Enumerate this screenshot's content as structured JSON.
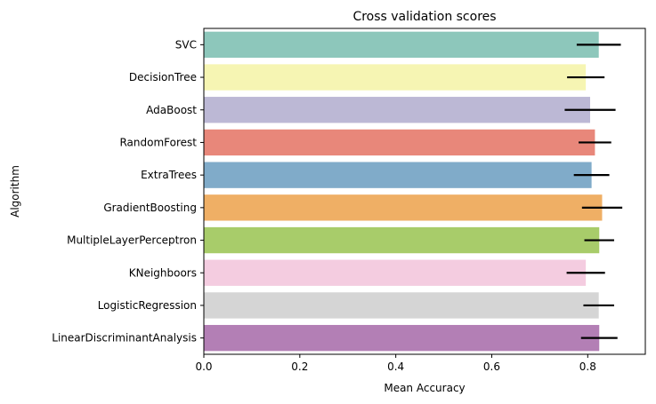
{
  "chart_data": {
    "type": "bar",
    "orientation": "horizontal",
    "title": "Cross validation scores",
    "xlabel": "Mean Accuracy",
    "ylabel": "Algorithm",
    "xlim": [
      0,
      0.92
    ],
    "xticks": [
      0.0,
      0.2,
      0.4,
      0.6,
      0.8
    ],
    "xtick_labels": [
      "0.0",
      "0.2",
      "0.4",
      "0.6",
      "0.8"
    ],
    "grid": false,
    "legend": "none",
    "categories": [
      "SVC",
      "DecisionTree",
      "AdaBoost",
      "RandomForest",
      "ExtraTrees",
      "GradientBoosting",
      "MultipleLayerPerceptron",
      "KNeighboors",
      "LogisticRegression",
      "LinearDiscriminantAnalysis"
    ],
    "values": [
      0.823,
      0.796,
      0.805,
      0.815,
      0.808,
      0.83,
      0.824,
      0.796,
      0.823,
      0.824
    ],
    "errors": [
      0.046,
      0.039,
      0.053,
      0.034,
      0.037,
      0.042,
      0.031,
      0.04,
      0.032,
      0.038
    ],
    "colors": [
      "#8dc7bb",
      "#f6f5b3",
      "#bcb8d5",
      "#e8877a",
      "#80abc9",
      "#efaf65",
      "#a8cc6a",
      "#f4cce0",
      "#d5d5d5",
      "#b37fb5"
    ]
  }
}
